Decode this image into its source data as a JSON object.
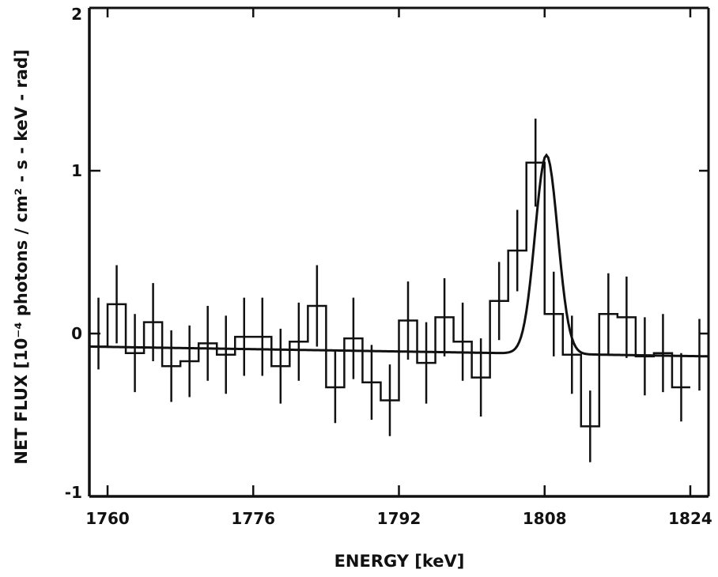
{
  "chart_data": {
    "type": "line",
    "xlabel": "ENERGY [keV]",
    "ylabel": "NET FLUX [10⁻⁴ photons / cm² - s - keV - rad]",
    "xlim": [
      1758,
      1826
    ],
    "ylim": [
      -1,
      2
    ],
    "x_ticks": [
      1760,
      1776,
      1792,
      1808,
      1824
    ],
    "x_tick_labels": [
      "1760",
      "1776",
      "1792",
      "1808",
      "1824"
    ],
    "y_ticks": [
      -1,
      0,
      1,
      2
    ],
    "y_tick_labels": [
      "-1",
      "0",
      "1",
      "2"
    ],
    "grid": false,
    "series": [
      {
        "type": "histogram-steps",
        "x": [
          1758,
          1760,
          1762,
          1764,
          1766,
          1768,
          1770,
          1772,
          1774,
          1776,
          1778,
          1780,
          1782,
          1784,
          1786,
          1788,
          1790,
          1792,
          1794,
          1796,
          1798,
          1800,
          1802,
          1804,
          1806,
          1808,
          1810,
          1812,
          1814,
          1816,
          1818,
          1820,
          1822,
          1824
        ],
        "values": [
          -0.08,
          0.18,
          -0.12,
          0.07,
          -0.2,
          -0.17,
          -0.06,
          -0.13,
          -0.02,
          -0.02,
          -0.2,
          -0.05,
          0.17,
          -0.33,
          -0.03,
          -0.3,
          -0.41,
          0.08,
          -0.18,
          0.1,
          -0.05,
          -0.27,
          0.2,
          0.51,
          1.05,
          0.12,
          -0.13,
          -0.57,
          0.12,
          0.1,
          -0.14,
          -0.12,
          -0.33
        ]
      },
      {
        "type": "error-bars",
        "x": [
          1759,
          1761,
          1763,
          1765,
          1767,
          1769,
          1771,
          1773,
          1775,
          1777,
          1779,
          1781,
          1783,
          1785,
          1787,
          1789,
          1791,
          1793,
          1795,
          1797,
          1799,
          1801,
          1803,
          1805,
          1807,
          1809,
          1811,
          1813,
          1815,
          1817,
          1819,
          1821,
          1823,
          1825
        ],
        "y": [
          0.0,
          0.18,
          -0.12,
          0.07,
          -0.2,
          -0.17,
          -0.06,
          -0.13,
          -0.02,
          -0.02,
          -0.2,
          -0.05,
          0.17,
          -0.33,
          -0.03,
          -0.3,
          -0.41,
          0.08,
          -0.18,
          0.1,
          -0.05,
          -0.27,
          0.2,
          0.51,
          1.05,
          0.12,
          -0.13,
          -0.57,
          0.12,
          0.1,
          -0.14,
          -0.12,
          -0.33,
          -0.13
        ],
        "err": [
          0.22,
          0.24,
          0.24,
          0.24,
          0.22,
          0.22,
          0.23,
          0.24,
          0.24,
          0.24,
          0.23,
          0.24,
          0.25,
          0.22,
          0.25,
          0.23,
          0.22,
          0.24,
          0.25,
          0.24,
          0.24,
          0.24,
          0.24,
          0.25,
          0.27,
          0.26,
          0.24,
          0.22,
          0.25,
          0.25,
          0.24,
          0.24,
          0.21,
          0.22
        ]
      },
      {
        "type": "fit-curve",
        "baseline_at_xmin": -0.08,
        "baseline_at_xmax": -0.14,
        "peak_center": 1808.2,
        "peak_amplitude": 1.22,
        "peak_sigma": 1.25
      }
    ]
  }
}
